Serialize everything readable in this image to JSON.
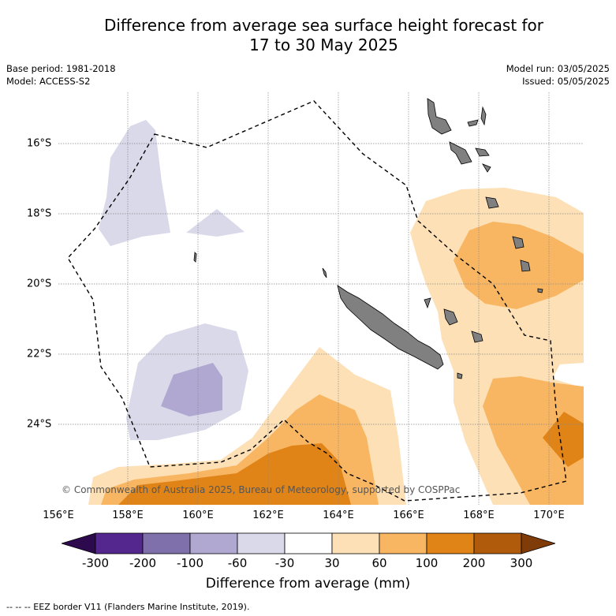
{
  "title": {
    "line1": "Difference from average sea surface height forecast for",
    "line2": "17 to 30 May 2025"
  },
  "meta_left": {
    "base_period": "Base period: 1981-2018",
    "model": "Model: ACCESS-S2"
  },
  "meta_right": {
    "model_run": "Model run: 03/05/2025",
    "issued": "Issued: 05/05/2025"
  },
  "lon_labels": [
    "156°E",
    "158°E",
    "160°E",
    "162°E",
    "164°E",
    "166°E",
    "168°E",
    "170°E"
  ],
  "lat_labels": [
    "16°S",
    "18°S",
    "20°S",
    "22°S",
    "24°S"
  ],
  "copyright": "© Commonwealth of Australia 2025, Bureau of Meteorology, supported by COSPPac",
  "colorbar": {
    "ticks": [
      "-300",
      "-200",
      "-100",
      "-60",
      "-30",
      "30",
      "60",
      "100",
      "200",
      "300"
    ],
    "colors": [
      "#54278f",
      "#7f6fab",
      "#b0a8d1",
      "#d9d9ea",
      "#ffffff",
      "#fde0b6",
      "#f9b662",
      "#e08418",
      "#b05a0b"
    ],
    "under_color": "#2d0a4e",
    "over_color": "#7f3b08",
    "title": "Difference from average (mm)"
  },
  "eez_note": "--  --  -- EEZ border V11 (Flanders Marine Institute, 2019)."
}
